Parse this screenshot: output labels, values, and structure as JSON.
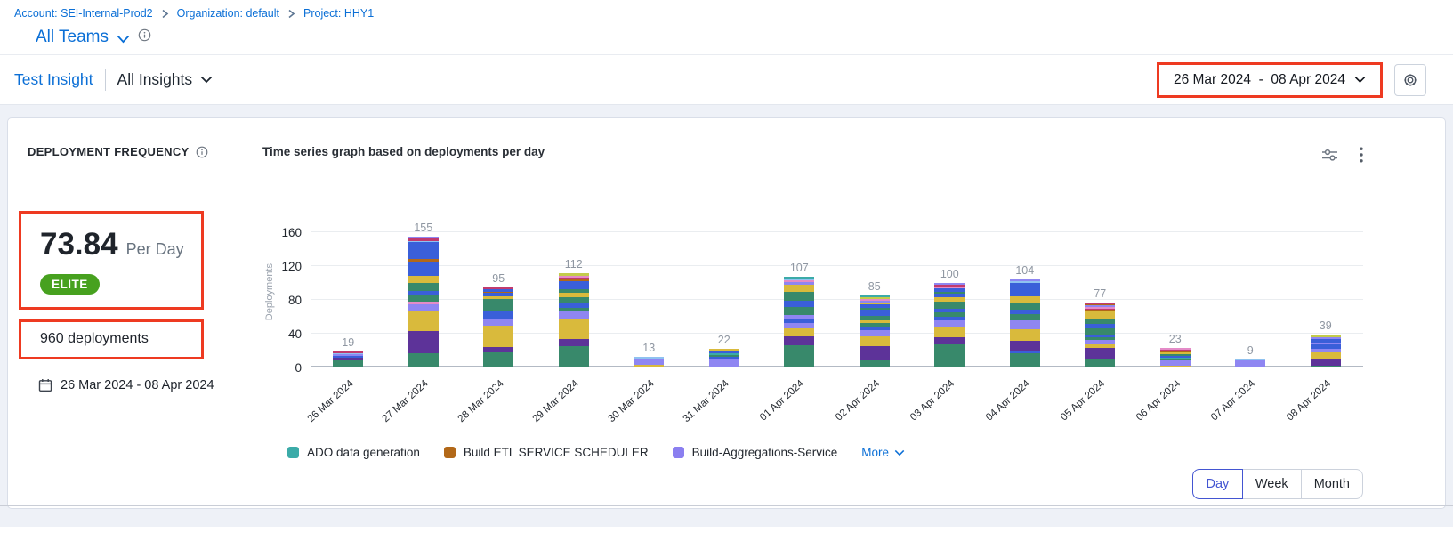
{
  "breadcrumb": {
    "items": [
      {
        "label": "Account: SEI-Internal-Prod2"
      },
      {
        "label": "Organization: default"
      },
      {
        "label": "Project: HHY1"
      }
    ]
  },
  "team_selector": {
    "label": "All Teams"
  },
  "insight_bar": {
    "insight_name": "Test Insight",
    "scope_label": "All Insights",
    "date_range": "26 Mar 2024  -  08 Apr 2024"
  },
  "widget": {
    "title": "DEPLOYMENT FREQUENCY",
    "metric_value": "73.84",
    "metric_unit": "Per Day",
    "badge": "ELITE",
    "total_label": "960 deployments",
    "date_range": "26 Mar 2024 - 08 Apr 2024",
    "chart_title": "Time series graph based on deployments per day",
    "legend": [
      {
        "label": "ADO data generation",
        "color": "#3baba8"
      },
      {
        "label": "Build ETL SERVICE SCHEDULER",
        "color": "#b26818"
      },
      {
        "label": "Build-Aggregations-Service",
        "color": "#8b7ff0"
      }
    ],
    "legend_more": "More",
    "granularity": {
      "options": [
        "Day",
        "Week",
        "Month"
      ],
      "selected": "Day"
    },
    "colors": {
      "annotation_red": "#ee3a21",
      "badge_green": "#47a11f",
      "link_blue": "#0b6fd6"
    }
  },
  "chart_data": {
    "type": "bar",
    "stacked": true,
    "title": "Time series graph based on deployments per day",
    "xlabel": "",
    "ylabel": "Deployments",
    "yticks": [
      0,
      40,
      80,
      120,
      160
    ],
    "ylim": [
      0,
      175
    ],
    "grid": true,
    "legend_position": "bottom",
    "categories": [
      "26 Mar 2024",
      "27 Mar 2024",
      "28 Mar 2024",
      "29 Mar 2024",
      "30 Mar 2024",
      "31 Mar 2024",
      "01 Apr 2024",
      "02 Apr 2024",
      "03 Apr 2024",
      "04 Apr 2024",
      "05 Apr 2024",
      "06 Apr 2024",
      "07 Apr 2024",
      "08 Apr 2024"
    ],
    "totals": [
      19,
      155,
      95,
      112,
      13,
      22,
      107,
      85,
      100,
      104,
      77,
      23,
      9,
      39
    ],
    "palette": {
      "g": "#38896b",
      "p": "#5d3399",
      "y": "#d9ba3c",
      "l": "#8f86f2",
      "b": "#3a5fd9",
      "t": "#3baba8",
      "o": "#b26818",
      "c": "#c13a6e",
      "k": "#e48bc8",
      "s": "#8fc2f0",
      "m": "#c3cc4a"
    },
    "stacks": [
      [
        [
          "g",
          8
        ],
        [
          "p",
          4
        ],
        [
          "b",
          2
        ],
        [
          "l",
          2
        ],
        [
          "s",
          1
        ],
        [
          "c",
          2
        ]
      ],
      [
        [
          "g",
          17
        ],
        [
          "p",
          26
        ],
        [
          "y",
          24
        ],
        [
          "l",
          8
        ],
        [
          "k",
          3
        ],
        [
          "g",
          8
        ],
        [
          "b",
          5
        ],
        [
          "g",
          9
        ],
        [
          "y",
          8
        ],
        [
          "b",
          17
        ],
        [
          "o",
          3
        ],
        [
          "b",
          20
        ],
        [
          "s",
          2
        ],
        [
          "c",
          3
        ],
        [
          "l",
          2
        ]
      ],
      [
        [
          "g",
          18
        ],
        [
          "p",
          6
        ],
        [
          "y",
          26
        ],
        [
          "l",
          7
        ],
        [
          "b",
          10
        ],
        [
          "g",
          14
        ],
        [
          "y",
          3
        ],
        [
          "b",
          4
        ],
        [
          "o",
          2
        ],
        [
          "b",
          3
        ],
        [
          "c",
          2
        ]
      ],
      [
        [
          "g",
          25
        ],
        [
          "p",
          9
        ],
        [
          "y",
          24
        ],
        [
          "l",
          8
        ],
        [
          "g",
          5
        ],
        [
          "b",
          6
        ],
        [
          "g",
          6
        ],
        [
          "y",
          6
        ],
        [
          "g",
          4
        ],
        [
          "b",
          9
        ],
        [
          "o",
          2
        ],
        [
          "c",
          2
        ],
        [
          "k",
          3
        ],
        [
          "m",
          3
        ]
      ],
      [
        [
          "g",
          1
        ],
        [
          "y",
          2
        ],
        [
          "l",
          8
        ],
        [
          "s",
          2
        ]
      ],
      [
        [
          "l",
          10
        ],
        [
          "b",
          3
        ],
        [
          "g",
          2
        ],
        [
          "t",
          2
        ],
        [
          "b",
          2
        ],
        [
          "y",
          3
        ]
      ],
      [
        [
          "g",
          26
        ],
        [
          "p",
          11
        ],
        [
          "y",
          9
        ],
        [
          "l",
          7
        ],
        [
          "b",
          5
        ],
        [
          "l",
          4
        ],
        [
          "g",
          10
        ],
        [
          "b",
          7
        ],
        [
          "g",
          11
        ],
        [
          "y",
          8
        ],
        [
          "l",
          3
        ],
        [
          "k",
          2
        ],
        [
          "s",
          2
        ],
        [
          "t",
          2
        ]
      ],
      [
        [
          "g",
          8
        ],
        [
          "p",
          17
        ],
        [
          "y",
          12
        ],
        [
          "l",
          7
        ],
        [
          "b",
          3
        ],
        [
          "g",
          6
        ],
        [
          "y",
          3
        ],
        [
          "g",
          5
        ],
        [
          "b",
          4
        ],
        [
          "b",
          3
        ],
        [
          "g",
          3
        ],
        [
          "b",
          4
        ],
        [
          "y",
          2
        ],
        [
          "l",
          2
        ],
        [
          "k",
          2
        ],
        [
          "m",
          2
        ],
        [
          "t",
          2
        ]
      ],
      [
        [
          "g",
          27
        ],
        [
          "p",
          9
        ],
        [
          "y",
          12
        ],
        [
          "l",
          8
        ],
        [
          "b",
          4
        ],
        [
          "g",
          5
        ],
        [
          "b",
          5
        ],
        [
          "g",
          8
        ],
        [
          "y",
          5
        ],
        [
          "b",
          4
        ],
        [
          "g",
          3
        ],
        [
          "b",
          4
        ],
        [
          "k",
          2
        ],
        [
          "c",
          2
        ],
        [
          "l",
          2
        ]
      ],
      [
        [
          "g",
          17
        ],
        [
          "b",
          2
        ],
        [
          "p",
          13
        ],
        [
          "y",
          13
        ],
        [
          "l",
          11
        ],
        [
          "g",
          7
        ],
        [
          "b",
          5
        ],
        [
          "g",
          9
        ],
        [
          "y",
          7
        ],
        [
          "b",
          16
        ],
        [
          "s",
          2
        ],
        [
          "l",
          2
        ]
      ],
      [
        [
          "g",
          10
        ],
        [
          "p",
          13
        ],
        [
          "y",
          4
        ],
        [
          "l",
          6
        ],
        [
          "g",
          3
        ],
        [
          "b",
          3
        ],
        [
          "g",
          7
        ],
        [
          "b",
          6
        ],
        [
          "g",
          6
        ],
        [
          "y",
          8
        ],
        [
          "o",
          2
        ],
        [
          "c",
          2
        ],
        [
          "k",
          2
        ],
        [
          "l",
          2
        ],
        [
          "o",
          1
        ],
        [
          "c",
          2
        ]
      ],
      [
        [
          "y",
          2
        ],
        [
          "l",
          6
        ],
        [
          "g",
          2
        ],
        [
          "t",
          2
        ],
        [
          "b",
          2
        ],
        [
          "g",
          2
        ],
        [
          "y",
          2
        ],
        [
          "o",
          1
        ],
        [
          "c",
          2
        ],
        [
          "k",
          2
        ]
      ],
      [
        [
          "l",
          8
        ],
        [
          "s",
          1
        ]
      ],
      [
        [
          "g",
          2
        ],
        [
          "p",
          9
        ],
        [
          "y",
          7
        ],
        [
          "l",
          4
        ],
        [
          "b",
          5
        ],
        [
          "l",
          3
        ],
        [
          "b",
          4
        ],
        [
          "l",
          2
        ],
        [
          "m",
          3
        ]
      ]
    ]
  }
}
